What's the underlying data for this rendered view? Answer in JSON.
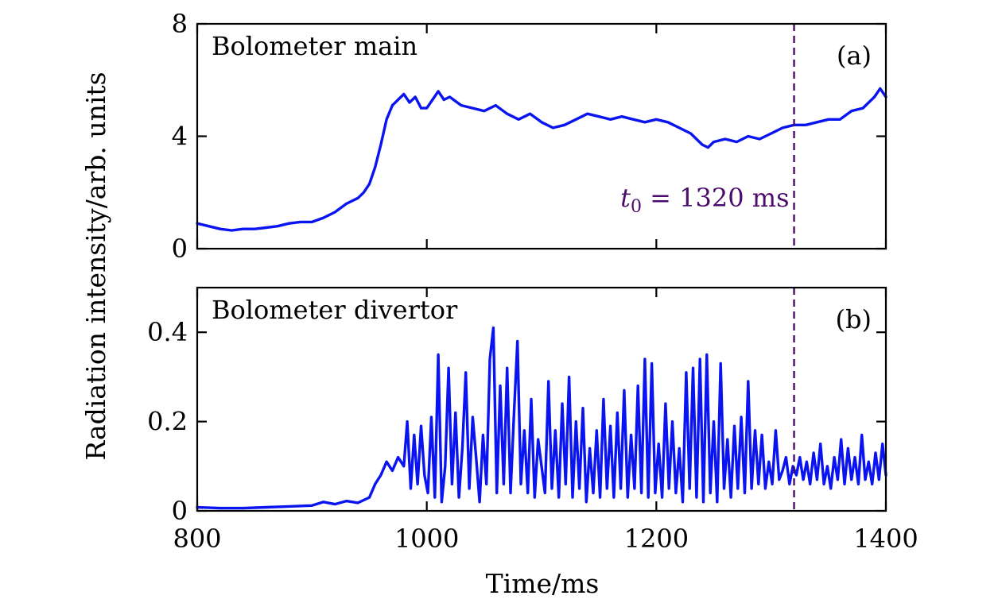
{
  "chart_data": [
    {
      "type": "line",
      "panel_title": "Bolometer main",
      "panel_tag": "(a)",
      "xlim": [
        800,
        1400
      ],
      "ylim": [
        0,
        8
      ],
      "y_ticks": [
        0,
        4,
        8
      ],
      "y_tick_labels": [
        "0",
        "4",
        "8"
      ],
      "x_ticks": [
        800,
        1000,
        1200,
        1400
      ],
      "x_tick_labels": [
        "",
        "",
        "",
        ""
      ],
      "line_color": "#0a14f0",
      "marker_x": 1320,
      "marker_color": "#4b0c6b",
      "annotation": "t0 = 1320 ms",
      "annotation_main": "t",
      "annotation_sub": "0",
      "annotation_rest": " = 1320 ms",
      "series": [
        {
          "x": [
            800,
            810,
            820,
            830,
            840,
            850,
            860,
            870,
            880,
            890,
            900,
            910,
            920,
            930,
            940,
            945,
            950,
            955,
            960,
            965,
            970,
            975,
            980,
            985,
            990,
            995,
            1000,
            1005,
            1010,
            1015,
            1020,
            1030,
            1040,
            1050,
            1060,
            1070,
            1080,
            1090,
            1100,
            1110,
            1120,
            1130,
            1140,
            1150,
            1160,
            1170,
            1180,
            1190,
            1200,
            1210,
            1220,
            1230,
            1240,
            1245,
            1250,
            1260,
            1270,
            1280,
            1290,
            1300,
            1310,
            1320,
            1330,
            1340,
            1350,
            1360,
            1370,
            1380,
            1390,
            1395,
            1400
          ],
          "y": [
            0.9,
            0.8,
            0.7,
            0.65,
            0.7,
            0.7,
            0.75,
            0.8,
            0.9,
            0.95,
            0.95,
            1.1,
            1.3,
            1.6,
            1.8,
            2.0,
            2.3,
            2.9,
            3.7,
            4.6,
            5.1,
            5.3,
            5.5,
            5.2,
            5.4,
            5.0,
            5.0,
            5.3,
            5.6,
            5.3,
            5.4,
            5.1,
            5.0,
            4.9,
            5.1,
            4.8,
            4.6,
            4.8,
            4.5,
            4.3,
            4.4,
            4.6,
            4.8,
            4.7,
            4.6,
            4.7,
            4.6,
            4.5,
            4.6,
            4.5,
            4.3,
            4.1,
            3.7,
            3.6,
            3.8,
            3.9,
            3.8,
            4.0,
            3.9,
            4.1,
            4.3,
            4.4,
            4.4,
            4.5,
            4.6,
            4.6,
            4.9,
            5.0,
            5.4,
            5.7,
            5.4
          ]
        }
      ]
    },
    {
      "type": "line",
      "panel_title": "Bolometer divertor",
      "panel_tag": "(b)",
      "xlim": [
        800,
        1400
      ],
      "ylim": [
        0,
        0.5
      ],
      "y_ticks": [
        0,
        0.2,
        0.4
      ],
      "y_tick_labels": [
        "0",
        "0.2",
        "0.4"
      ],
      "x_ticks": [
        800,
        1000,
        1200,
        1400
      ],
      "x_tick_labels": [
        "800",
        "1000",
        "1200",
        "1400"
      ],
      "line_color": "#0a14f0",
      "marker_x": 1320,
      "marker_color": "#4b0c6b",
      "series": [
        {
          "x": [
            800,
            820,
            840,
            860,
            880,
            900,
            910,
            920,
            930,
            940,
            950,
            955,
            960,
            965,
            970,
            975,
            980,
            983,
            986,
            989,
            992,
            995,
            998,
            1001,
            1004,
            1007,
            1010,
            1013,
            1016,
            1019,
            1022,
            1025,
            1028,
            1031,
            1034,
            1037,
            1040,
            1043,
            1046,
            1049,
            1052,
            1055,
            1058,
            1061,
            1064,
            1067,
            1070,
            1073,
            1076,
            1079,
            1082,
            1085,
            1088,
            1091,
            1094,
            1097,
            1100,
            1103,
            1106,
            1109,
            1112,
            1115,
            1118,
            1121,
            1124,
            1127,
            1130,
            1133,
            1136,
            1139,
            1142,
            1145,
            1148,
            1151,
            1154,
            1157,
            1160,
            1163,
            1166,
            1169,
            1172,
            1175,
            1178,
            1181,
            1184,
            1187,
            1190,
            1193,
            1196,
            1199,
            1202,
            1205,
            1208,
            1211,
            1214,
            1217,
            1220,
            1223,
            1226,
            1229,
            1232,
            1235,
            1238,
            1241,
            1244,
            1247,
            1250,
            1253,
            1256,
            1259,
            1262,
            1265,
            1268,
            1271,
            1274,
            1277,
            1280,
            1283,
            1286,
            1289,
            1292,
            1295,
            1298,
            1301,
            1304,
            1307,
            1310,
            1313,
            1316,
            1319,
            1322,
            1325,
            1328,
            1331,
            1334,
            1337,
            1340,
            1343,
            1346,
            1349,
            1352,
            1355,
            1358,
            1361,
            1364,
            1367,
            1370,
            1373,
            1376,
            1379,
            1382,
            1385,
            1388,
            1391,
            1394,
            1397,
            1400
          ],
          "y": [
            0.008,
            0.006,
            0.006,
            0.008,
            0.01,
            0.012,
            0.02,
            0.015,
            0.022,
            0.018,
            0.03,
            0.06,
            0.08,
            0.11,
            0.09,
            0.12,
            0.1,
            0.2,
            0.05,
            0.17,
            0.06,
            0.19,
            0.08,
            0.04,
            0.21,
            0.03,
            0.35,
            0.02,
            0.1,
            0.32,
            0.06,
            0.22,
            0.03,
            0.14,
            0.31,
            0.05,
            0.21,
            0.12,
            0.02,
            0.17,
            0.06,
            0.34,
            0.41,
            0.04,
            0.28,
            0.06,
            0.32,
            0.04,
            0.22,
            0.38,
            0.06,
            0.18,
            0.04,
            0.25,
            0.03,
            0.16,
            0.1,
            0.04,
            0.29,
            0.05,
            0.18,
            0.03,
            0.24,
            0.06,
            0.3,
            0.03,
            0.2,
            0.05,
            0.23,
            0.02,
            0.14,
            0.04,
            0.18,
            0.03,
            0.25,
            0.05,
            0.19,
            0.03,
            0.22,
            0.05,
            0.27,
            0.03,
            0.17,
            0.05,
            0.28,
            0.04,
            0.34,
            0.03,
            0.33,
            0.04,
            0.15,
            0.03,
            0.24,
            0.05,
            0.2,
            0.04,
            0.14,
            0.02,
            0.31,
            0.05,
            0.32,
            0.03,
            0.34,
            0.02,
            0.35,
            0.04,
            0.2,
            0.02,
            0.33,
            0.05,
            0.16,
            0.03,
            0.19,
            0.05,
            0.21,
            0.04,
            0.29,
            0.05,
            0.18,
            0.06,
            0.17,
            0.05,
            0.11,
            0.06,
            0.18,
            0.07,
            0.09,
            0.12,
            0.06,
            0.1,
            0.08,
            0.12,
            0.07,
            0.11,
            0.06,
            0.13,
            0.07,
            0.15,
            0.06,
            0.1,
            0.05,
            0.12,
            0.07,
            0.16,
            0.06,
            0.14,
            0.07,
            0.12,
            0.06,
            0.17,
            0.07,
            0.11,
            0.06,
            0.13,
            0.07,
            0.15,
            0.08
          ]
        }
      ]
    }
  ],
  "shared_xlabel": "Time/ms",
  "shared_ylabel": "Radiation intensity/arb. units"
}
